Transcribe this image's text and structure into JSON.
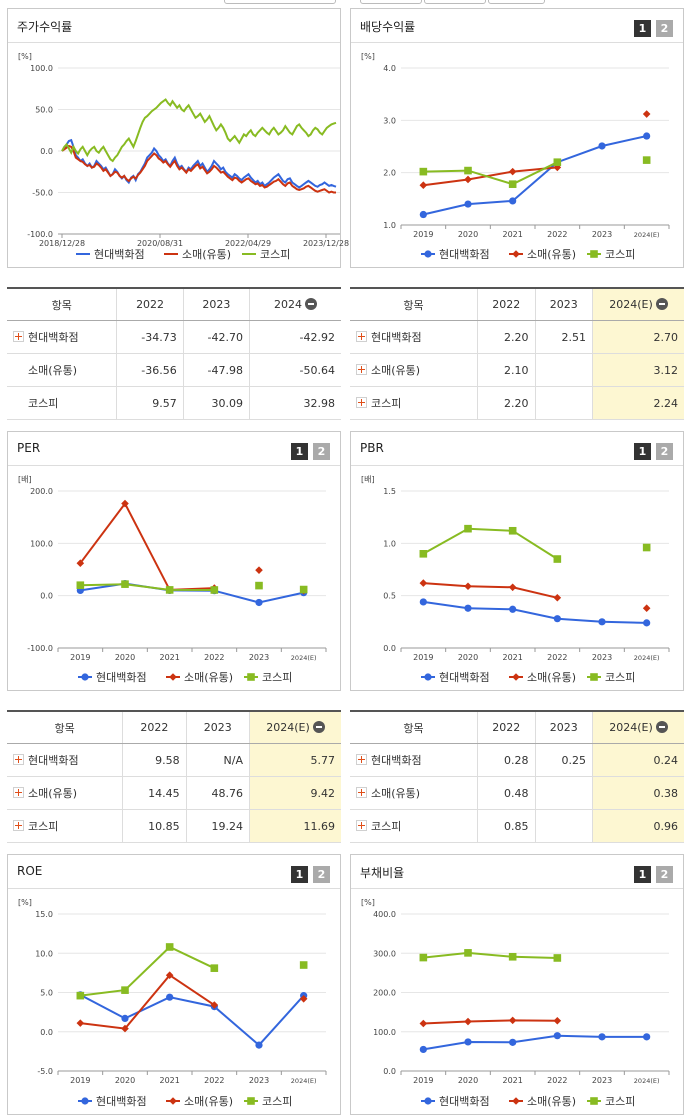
{
  "series_names": [
    "현대백화점",
    "소매(유통)",
    "코스피"
  ],
  "colors": {
    "s0": "#3366dd",
    "s1": "#cc3311",
    "s2": "#88bb22",
    "highlight": "#fdf7d2"
  },
  "page": {
    "p1": "1",
    "p2": "2"
  },
  "chart_data": [
    {
      "id": "price",
      "title": "주가수익률",
      "type": "line",
      "unit": "[%]",
      "ylim": [
        -100,
        100
      ],
      "yticks": [
        "100.0",
        "50.0",
        "0.0",
        "-50.0",
        "-100.0"
      ],
      "xticks": [
        "2018/12/28",
        "2020/08/31",
        "2022/04/29",
        "2023/12/28"
      ],
      "n_points": 120,
      "series": [
        {
          "name": "현대백화점",
          "values": [
            0,
            3,
            8,
            12,
            13,
            5,
            -5,
            -8,
            -12,
            -10,
            -15,
            -18,
            -15,
            -20,
            -18,
            -12,
            -15,
            -18,
            -22,
            -20,
            -25,
            -30,
            -28,
            -22,
            -25,
            -30,
            -33,
            -30,
            -35,
            -38,
            -32,
            -30,
            -35,
            -28,
            -25,
            -20,
            -15,
            -8,
            -5,
            -2,
            3,
            0,
            -5,
            -8,
            -12,
            -10,
            -15,
            -18,
            -12,
            -8,
            -15,
            -20,
            -18,
            -22,
            -25,
            -20,
            -22,
            -18,
            -15,
            -12,
            -18,
            -15,
            -20,
            -25,
            -22,
            -18,
            -12,
            -15,
            -18,
            -22,
            -20,
            -25,
            -28,
            -30,
            -32,
            -28,
            -30,
            -33,
            -35,
            -32,
            -30,
            -28,
            -32,
            -35,
            -38,
            -36,
            -40,
            -38,
            -42,
            -40,
            -38,
            -35,
            -32,
            -30,
            -28,
            -32,
            -36,
            -38,
            -34,
            -33,
            -38,
            -40,
            -42,
            -44,
            -42,
            -40,
            -38,
            -36,
            -38,
            -40,
            -42,
            -43,
            -41,
            -40,
            -38,
            -40,
            -42,
            -41,
            -42,
            -43
          ]
        },
        {
          "name": "소매(유통)",
          "values": [
            0,
            2,
            4,
            6,
            5,
            0,
            -8,
            -10,
            -12,
            -13,
            -16,
            -18,
            -17,
            -20,
            -19,
            -15,
            -17,
            -20,
            -24,
            -22,
            -26,
            -30,
            -28,
            -25,
            -26,
            -30,
            -32,
            -30,
            -34,
            -36,
            -33,
            -31,
            -33,
            -29,
            -26,
            -22,
            -18,
            -12,
            -9,
            -6,
            -3,
            -5,
            -9,
            -11,
            -14,
            -12,
            -16,
            -19,
            -15,
            -12,
            -18,
            -22,
            -20,
            -23,
            -26,
            -22,
            -24,
            -21,
            -18,
            -16,
            -21,
            -19,
            -23,
            -27,
            -25,
            -22,
            -18,
            -20,
            -23,
            -26,
            -25,
            -28,
            -31,
            -33,
            -35,
            -32,
            -33,
            -36,
            -38,
            -36,
            -34,
            -33,
            -36,
            -38,
            -40,
            -39,
            -42,
            -41,
            -44,
            -43,
            -41,
            -39,
            -37,
            -36,
            -34,
            -37,
            -40,
            -42,
            -39,
            -38,
            -42,
            -44,
            -46,
            -47,
            -46,
            -45,
            -43,
            -42,
            -44,
            -46,
            -48,
            -49,
            -48,
            -47,
            -46,
            -48,
            -50,
            -49,
            -50,
            -50
          ]
        },
        {
          "name": "코스피",
          "values": [
            0,
            5,
            8,
            3,
            -2,
            5,
            0,
            -3,
            2,
            5,
            0,
            -5,
            0,
            3,
            5,
            0,
            -2,
            2,
            5,
            0,
            -5,
            -10,
            -12,
            -8,
            -5,
            0,
            5,
            8,
            12,
            15,
            10,
            5,
            12,
            20,
            28,
            35,
            40,
            42,
            45,
            48,
            50,
            52,
            55,
            58,
            60,
            62,
            58,
            55,
            60,
            56,
            52,
            55,
            50,
            48,
            52,
            55,
            50,
            45,
            40,
            42,
            45,
            40,
            35,
            38,
            42,
            36,
            30,
            25,
            28,
            32,
            28,
            22,
            15,
            12,
            15,
            18,
            14,
            10,
            15,
            20,
            18,
            22,
            25,
            20,
            18,
            22,
            25,
            28,
            25,
            22,
            20,
            25,
            28,
            24,
            20,
            22,
            25,
            30,
            26,
            22,
            20,
            25,
            30,
            32,
            28,
            25,
            22,
            18,
            20,
            25,
            28,
            26,
            22,
            20,
            24,
            28,
            30,
            32,
            33,
            34
          ]
        }
      ],
      "legend": "bottom"
    },
    {
      "id": "dividend",
      "title": "배당수익률",
      "type": "line",
      "unit": "[%]",
      "ylim": [
        1.0,
        4.0
      ],
      "yticks": [
        "4.0",
        "3.0",
        "2.0",
        "1.0"
      ],
      "categories": [
        "2019",
        "2020",
        "2021",
        "2022",
        "2023",
        "2024(E)"
      ],
      "series": [
        {
          "name": "현대백화점",
          "values": [
            1.2,
            1.4,
            1.46,
            2.2,
            2.51,
            2.7
          ]
        },
        {
          "name": "소매(유통)",
          "values": [
            1.76,
            1.87,
            2.02,
            2.1,
            null,
            3.12
          ]
        },
        {
          "name": "코스피",
          "values": [
            2.02,
            2.04,
            1.78,
            2.2,
            null,
            2.24
          ]
        }
      ],
      "legend": "bottom"
    },
    {
      "id": "per",
      "title": "PER",
      "type": "line",
      "unit": "[배]",
      "ylim": [
        -100,
        200
      ],
      "yticks": [
        "200.0",
        "100.0",
        "0.0",
        "-100.0"
      ],
      "categories": [
        "2019",
        "2020",
        "2021",
        "2022",
        "2023",
        "2024(E)"
      ],
      "series": [
        {
          "name": "현대백화점",
          "values": [
            10,
            23,
            10,
            9.58,
            -13,
            5.77
          ]
        },
        {
          "name": "소매(유통)",
          "values": [
            62,
            176,
            11,
            14.45,
            48.76,
            9.42
          ]
        },
        {
          "name": "코스피",
          "values": [
            20,
            22,
            11,
            10.85,
            19.24,
            11.69
          ]
        }
      ],
      "legend": "bottom"
    },
    {
      "id": "pbr",
      "title": "PBR",
      "type": "line",
      "unit": "[배]",
      "ylim": [
        0,
        1.5
      ],
      "yticks": [
        "1.5",
        "1.0",
        "0.5",
        "0.0"
      ],
      "categories": [
        "2019",
        "2020",
        "2021",
        "2022",
        "2023",
        "2024(E)"
      ],
      "series": [
        {
          "name": "현대백화점",
          "values": [
            0.44,
            0.38,
            0.37,
            0.28,
            0.25,
            0.24
          ]
        },
        {
          "name": "소매(유통)",
          "values": [
            0.62,
            0.59,
            0.58,
            0.48,
            null,
            0.38
          ]
        },
        {
          "name": "코스피",
          "values": [
            0.9,
            1.14,
            1.12,
            0.85,
            null,
            0.96
          ]
        }
      ],
      "legend": "bottom"
    },
    {
      "id": "roe",
      "title": "ROE",
      "type": "line",
      "unit": "[%]",
      "ylim": [
        -5,
        15
      ],
      "yticks": [
        "15.0",
        "10.0",
        "5.0",
        "0.0",
        "-5.0"
      ],
      "categories": [
        "2019",
        "2020",
        "2021",
        "2022",
        "2023",
        "2024(E)"
      ],
      "series": [
        {
          "name": "현대백화점",
          "values": [
            4.7,
            1.7,
            4.4,
            3.2,
            -1.7,
            4.6
          ]
        },
        {
          "name": "소매(유통)",
          "values": [
            1.1,
            0.4,
            7.2,
            3.4,
            null,
            4.2
          ]
        },
        {
          "name": "코스피",
          "values": [
            4.6,
            5.3,
            10.8,
            8.1,
            null,
            8.5
          ]
        }
      ],
      "legend": "bottom"
    },
    {
      "id": "debt",
      "title": "부채비율",
      "type": "line",
      "unit": "[%]",
      "ylim": [
        0,
        400
      ],
      "yticks": [
        "400.0",
        "300.0",
        "200.0",
        "100.0",
        "0.0"
      ],
      "categories": [
        "2019",
        "2020",
        "2021",
        "2022",
        "2023",
        "2024(E)"
      ],
      "series": [
        {
          "name": "현대백화점",
          "values": [
            55,
            74,
            73,
            90,
            87,
            87
          ]
        },
        {
          "name": "소매(유통)",
          "values": [
            121,
            126,
            129,
            128,
            null,
            null
          ]
        },
        {
          "name": "코스피",
          "values": [
            289,
            301,
            291,
            288,
            null,
            null
          ]
        }
      ],
      "legend": "bottom"
    }
  ],
  "tables": {
    "price": {
      "header": [
        "항목",
        "2022",
        "2023",
        "2024"
      ],
      "rows": [
        {
          "label": "현대백화점",
          "plus": true,
          "cells": [
            "-34.73",
            "-42.70",
            "-42.92"
          ]
        },
        {
          "label": "소매(유통)",
          "plus": false,
          "cells": [
            "-36.56",
            "-47.98",
            "-50.64"
          ]
        },
        {
          "label": "코스피",
          "plus": false,
          "cells": [
            "9.57",
            "30.09",
            "32.98"
          ]
        }
      ]
    },
    "dividend": {
      "header": [
        "항목",
        "2022",
        "2023",
        "2024(E)"
      ],
      "rows": [
        {
          "label": "현대백화점",
          "plus": true,
          "cells": [
            "2.20",
            "2.51",
            "2.70"
          ]
        },
        {
          "label": "소매(유통)",
          "plus": true,
          "cells": [
            "2.10",
            "",
            "3.12"
          ]
        },
        {
          "label": "코스피",
          "plus": true,
          "cells": [
            "2.20",
            "",
            "2.24"
          ]
        }
      ]
    },
    "per": {
      "header": [
        "항목",
        "2022",
        "2023",
        "2024(E)"
      ],
      "rows": [
        {
          "label": "현대백화점",
          "plus": true,
          "cells": [
            "9.58",
            "N/A",
            "5.77"
          ]
        },
        {
          "label": "소매(유통)",
          "plus": true,
          "cells": [
            "14.45",
            "48.76",
            "9.42"
          ]
        },
        {
          "label": "코스피",
          "plus": true,
          "cells": [
            "10.85",
            "19.24",
            "11.69"
          ]
        }
      ]
    },
    "pbr": {
      "header": [
        "항목",
        "2022",
        "2023",
        "2024(E)"
      ],
      "rows": [
        {
          "label": "현대백화점",
          "plus": true,
          "cells": [
            "0.28",
            "0.25",
            "0.24"
          ]
        },
        {
          "label": "소매(유통)",
          "plus": true,
          "cells": [
            "0.48",
            "",
            "0.38"
          ]
        },
        {
          "label": "코스피",
          "plus": true,
          "cells": [
            "0.85",
            "",
            "0.96"
          ]
        }
      ]
    }
  }
}
